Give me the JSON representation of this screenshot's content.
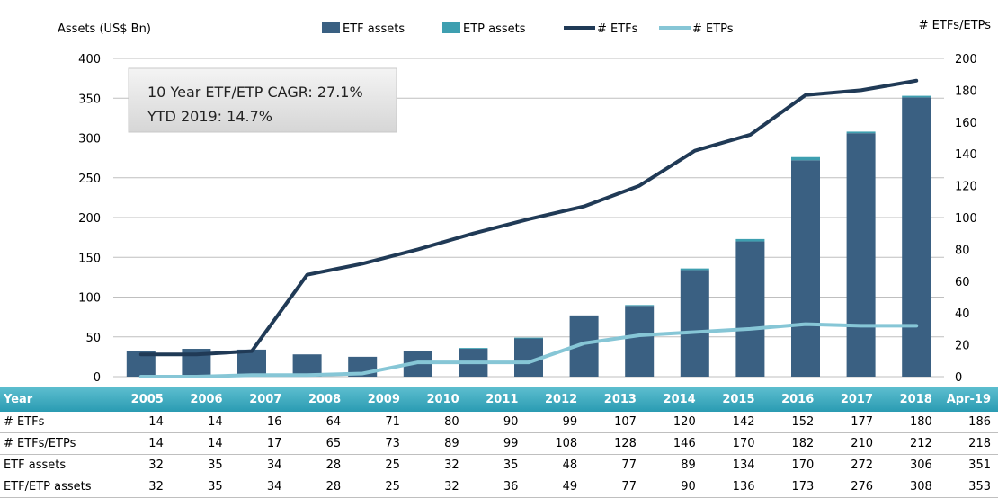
{
  "chart_data": {
    "type": "bar",
    "categories": [
      "2005",
      "2006",
      "2007",
      "2008",
      "2009",
      "2010",
      "2011",
      "2012",
      "2013",
      "2014",
      "2015",
      "2016",
      "2017",
      "2018",
      "Apr-19"
    ],
    "series": [
      {
        "name": "ETF assets",
        "kind": "bar-stack",
        "axis": "left",
        "color": "#3a6082",
        "values": [
          32,
          35,
          34,
          28,
          25,
          32,
          35,
          48,
          77,
          89,
          134,
          170,
          272,
          306,
          351
        ]
      },
      {
        "name": "ETP assets",
        "kind": "bar-stack",
        "axis": "left",
        "color": "#3e9fb0",
        "values": [
          0,
          0,
          0,
          0,
          0,
          0,
          1,
          1,
          0,
          1,
          2,
          3,
          4,
          2,
          2
        ]
      },
      {
        "name": "# ETFs",
        "kind": "line",
        "axis": "right",
        "color": "#203a56",
        "values": [
          14,
          14,
          16,
          64,
          71,
          80,
          90,
          99,
          107,
          120,
          142,
          152,
          177,
          180,
          186
        ]
      },
      {
        "name": "# ETPs",
        "kind": "line",
        "axis": "right",
        "color": "#86c6d6",
        "values": [
          0,
          0,
          1,
          1,
          2,
          9,
          9,
          9,
          21,
          26,
          28,
          30,
          33,
          32,
          32
        ]
      }
    ],
    "ylabel": "Assets (US$ Bn)",
    "y2label": "# ETFs/ETPs",
    "ylim": [
      0,
      400
    ],
    "y2lim": [
      0,
      200
    ],
    "yticks": [
      0,
      50,
      100,
      150,
      200,
      250,
      300,
      350,
      400
    ],
    "y2ticks": [
      0,
      20,
      40,
      60,
      80,
      100,
      120,
      140,
      160,
      180,
      200
    ],
    "grid": true,
    "legend_position": "top-center",
    "annotation": {
      "line1": "10 Year ETF/ETP CAGR: 27.1%",
      "line2": "YTD 2019: 14.7%"
    }
  },
  "table": {
    "header_label": "Year",
    "rows": [
      {
        "label": "# ETFs",
        "values": [
          "14",
          "14",
          "16",
          "64",
          "71",
          "80",
          "90",
          "99",
          "107",
          "120",
          "142",
          "152",
          "177",
          "180",
          "186"
        ]
      },
      {
        "label": "# ETFs/ETPs",
        "values": [
          "14",
          "14",
          "17",
          "65",
          "73",
          "89",
          "99",
          "108",
          "128",
          "146",
          "170",
          "182",
          "210",
          "212",
          "218"
        ]
      },
      {
        "label": "ETF assets",
        "values": [
          "32",
          "35",
          "34",
          "28",
          "25",
          "32",
          "35",
          "48",
          "77",
          "89",
          "134",
          "170",
          "272",
          "306",
          "351"
        ]
      },
      {
        "label": "ETF/ETP assets",
        "values": [
          "32",
          "35",
          "34",
          "28",
          "25",
          "32",
          "36",
          "49",
          "77",
          "90",
          "136",
          "173",
          "276",
          "308",
          "353"
        ]
      }
    ]
  }
}
